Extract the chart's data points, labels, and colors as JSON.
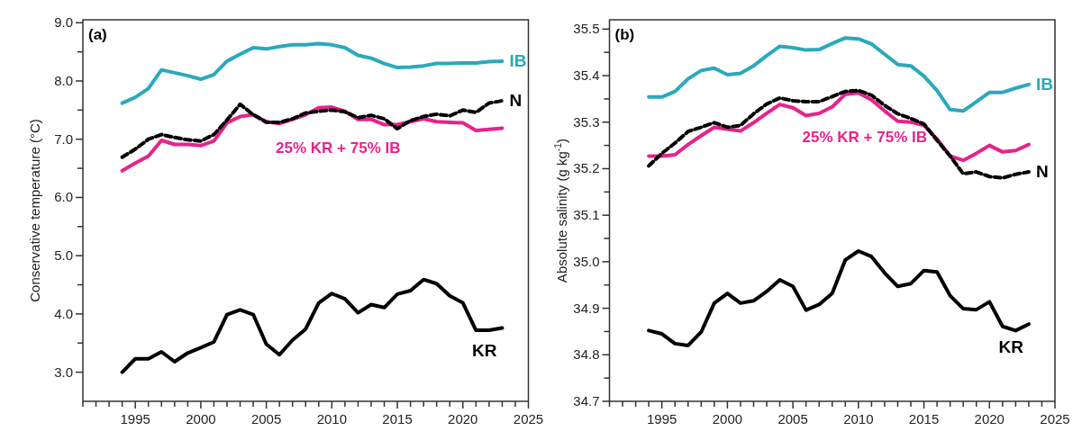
{
  "chart_data": [
    {
      "type": "line",
      "title": "(a)",
      "ylabel": "Conservative temperature (°C)",
      "x": [
        1994,
        1995,
        1996,
        1997,
        1998,
        1999,
        2000,
        2001,
        2002,
        2003,
        2004,
        2005,
        2006,
        2007,
        2008,
        2009,
        2010,
        2011,
        2012,
        2013,
        2014,
        2015,
        2016,
        2017,
        2018,
        2019,
        2020,
        2021,
        2022,
        2023
      ],
      "xlim": [
        1991,
        2025
      ],
      "ylim": [
        2.5,
        9.05
      ],
      "xticks": [
        {
          "value": 1991,
          "label": null
        },
        {
          "value": 1992,
          "label": null
        },
        {
          "value": 1993,
          "label": null
        },
        {
          "value": 1994,
          "label": null
        },
        1995,
        {
          "value": 1996,
          "label": null
        },
        {
          "value": 1997,
          "label": null
        },
        {
          "value": 1998,
          "label": null
        },
        {
          "value": 1999,
          "label": null
        },
        2000,
        {
          "value": 2001,
          "label": null
        },
        {
          "value": 2002,
          "label": null
        },
        {
          "value": 2003,
          "label": null
        },
        {
          "value": 2004,
          "label": null
        },
        2005,
        {
          "value": 2006,
          "label": null
        },
        {
          "value": 2007,
          "label": null
        },
        {
          "value": 2008,
          "label": null
        },
        {
          "value": 2009,
          "label": null
        },
        2010,
        {
          "value": 2011,
          "label": null
        },
        {
          "value": 2012,
          "label": null
        },
        {
          "value": 2013,
          "label": null
        },
        {
          "value": 2014,
          "label": null
        },
        2015,
        {
          "value": 2016,
          "label": null
        },
        {
          "value": 2017,
          "label": null
        },
        {
          "value": 2018,
          "label": null
        },
        {
          "value": 2019,
          "label": null
        },
        2020,
        {
          "value": 2021,
          "label": null
        },
        {
          "value": 2022,
          "label": null
        },
        {
          "value": 2023,
          "label": null
        },
        {
          "value": 2024,
          "label": null
        },
        2025
      ],
      "yticks": [
        {
          "value": 3,
          "label": "3.0"
        },
        {
          "value": 3.5,
          "label": null
        },
        {
          "value": 4,
          "label": "4.0"
        },
        {
          "value": 4.5,
          "label": null
        },
        {
          "value": 5,
          "label": "5.0"
        },
        {
          "value": 5.5,
          "label": null
        },
        {
          "value": 6,
          "label": "6.0"
        },
        {
          "value": 6.5,
          "label": null
        },
        {
          "value": 7,
          "label": "7.0"
        },
        {
          "value": 7.5,
          "label": null
        },
        {
          "value": 8,
          "label": "8.0"
        },
        {
          "value": 8.5,
          "label": null
        },
        {
          "value": 9,
          "label": "9.0"
        }
      ],
      "grid": false,
      "marker": "none",
      "series": [
        {
          "name": "IB",
          "color": "#2aa9bd",
          "line_style": "solid",
          "values": [
            7.62,
            7.72,
            7.87,
            8.19,
            8.14,
            8.09,
            8.03,
            8.11,
            8.34,
            8.46,
            8.57,
            8.55,
            8.59,
            8.62,
            8.62,
            8.64,
            8.62,
            8.57,
            8.44,
            8.39,
            8.3,
            8.23,
            8.24,
            8.26,
            8.3,
            8.3,
            8.31,
            8.31,
            8.33,
            8.34
          ]
        },
        {
          "name": "25% KR + 75% IB",
          "color": "#e6238c",
          "line_style": "solid",
          "values": [
            6.46,
            6.59,
            6.71,
            6.98,
            6.91,
            6.91,
            6.89,
            6.97,
            7.28,
            7.39,
            7.42,
            7.3,
            7.27,
            7.34,
            7.42,
            7.54,
            7.55,
            7.48,
            7.34,
            7.34,
            7.25,
            7.25,
            7.3,
            7.35,
            7.3,
            7.29,
            7.28,
            7.15,
            7.17,
            7.19
          ]
        },
        {
          "name": "N",
          "color": "#000000",
          "line_style": "dashed",
          "values": [
            6.69,
            6.83,
            7.0,
            7.08,
            7.03,
            6.99,
            6.97,
            7.08,
            7.33,
            7.6,
            7.42,
            7.29,
            7.29,
            7.35,
            7.45,
            7.48,
            7.5,
            7.47,
            7.37,
            7.41,
            7.35,
            7.18,
            7.32,
            7.39,
            7.43,
            7.4,
            7.5,
            7.46,
            7.62,
            7.66
          ]
        },
        {
          "name": "KR",
          "color": "#000000",
          "line_style": "solid",
          "values": [
            3.0,
            3.23,
            3.23,
            3.35,
            3.18,
            3.33,
            3.42,
            3.52,
            3.99,
            4.07,
            3.99,
            3.48,
            3.3,
            3.55,
            3.74,
            4.19,
            4.35,
            4.26,
            4.02,
            4.16,
            4.11,
            4.34,
            4.4,
            4.59,
            4.52,
            4.31,
            4.19,
            3.72,
            3.72,
            3.76
          ]
        }
      ]
    },
    {
      "type": "line",
      "title": "(b)",
      "ylabel": "Absolute salinity (g kg$^{-1}$)",
      "x": [
        1994,
        1995,
        1996,
        1997,
        1998,
        1999,
        2000,
        2001,
        2002,
        2003,
        2004,
        2005,
        2006,
        2007,
        2008,
        2009,
        2010,
        2011,
        2012,
        2013,
        2014,
        2015,
        2016,
        2017,
        2018,
        2019,
        2020,
        2021,
        2022,
        2023
      ],
      "xlim": [
        1991,
        2025
      ],
      "ylim": [
        34.7,
        35.52
      ],
      "xticks": [
        {
          "value": 1991,
          "label": null
        },
        {
          "value": 1992,
          "label": null
        },
        {
          "value": 1993,
          "label": null
        },
        {
          "value": 1994,
          "label": null
        },
        1995,
        {
          "value": 1996,
          "label": null
        },
        {
          "value": 1997,
          "label": null
        },
        {
          "value": 1998,
          "label": null
        },
        {
          "value": 1999,
          "label": null
        },
        2000,
        {
          "value": 2001,
          "label": null
        },
        {
          "value": 2002,
          "label": null
        },
        {
          "value": 2003,
          "label": null
        },
        {
          "value": 2004,
          "label": null
        },
        2005,
        {
          "value": 2006,
          "label": null
        },
        {
          "value": 2007,
          "label": null
        },
        {
          "value": 2008,
          "label": null
        },
        {
          "value": 2009,
          "label": null
        },
        2010,
        {
          "value": 2011,
          "label": null
        },
        {
          "value": 2012,
          "label": null
        },
        {
          "value": 2013,
          "label": null
        },
        {
          "value": 2014,
          "label": null
        },
        2015,
        {
          "value": 2016,
          "label": null
        },
        {
          "value": 2017,
          "label": null
        },
        {
          "value": 2018,
          "label": null
        },
        {
          "value": 2019,
          "label": null
        },
        2020,
        {
          "value": 2021,
          "label": null
        },
        {
          "value": 2022,
          "label": null
        },
        {
          "value": 2023,
          "label": null
        },
        {
          "value": 2024,
          "label": null
        },
        2025
      ],
      "yticks": [
        34.7,
        {
          "value": 34.75,
          "label": null
        },
        34.8,
        {
          "value": 34.85,
          "label": null
        },
        34.9,
        {
          "value": 34.95,
          "label": null
        },
        {
          "value": 35,
          "label": "35.0"
        },
        {
          "value": 35.05,
          "label": null
        },
        35.1,
        {
          "value": 35.15,
          "label": null
        },
        35.2,
        {
          "value": 35.25,
          "label": null
        },
        35.3,
        {
          "value": 35.35,
          "label": null
        },
        35.4,
        {
          "value": 35.45,
          "label": null
        },
        35.5
      ],
      "grid": false,
      "marker": "none",
      "series": [
        {
          "name": "IB",
          "color": "#2aa9bd",
          "line_style": "solid",
          "values": [
            35.354,
            35.354,
            35.366,
            35.393,
            35.411,
            35.416,
            35.402,
            35.405,
            35.421,
            35.443,
            35.463,
            35.46,
            35.455,
            35.456,
            35.469,
            35.481,
            35.479,
            35.468,
            35.446,
            35.424,
            35.421,
            35.399,
            35.368,
            35.327,
            35.324,
            35.344,
            35.364,
            35.364,
            35.373,
            35.381
          ]
        },
        {
          "name": "25% KR + 75% IB",
          "color": "#e6238c",
          "line_style": "solid",
          "values": [
            35.227,
            35.227,
            35.23,
            35.252,
            35.271,
            35.289,
            35.285,
            35.281,
            35.299,
            35.319,
            35.338,
            35.331,
            35.314,
            35.319,
            35.333,
            35.36,
            35.363,
            35.348,
            35.324,
            35.302,
            35.3,
            35.293,
            35.264,
            35.227,
            35.218,
            35.233,
            35.25,
            35.236,
            35.239,
            35.252
          ]
        },
        {
          "name": "N",
          "color": "#000000",
          "line_style": "dashed",
          "values": [
            35.206,
            35.233,
            35.255,
            35.28,
            35.289,
            35.299,
            35.289,
            35.293,
            35.318,
            35.339,
            35.352,
            35.346,
            35.344,
            35.344,
            35.355,
            35.366,
            35.368,
            35.358,
            35.336,
            35.318,
            35.308,
            35.296,
            35.261,
            35.227,
            35.189,
            35.193,
            35.183,
            35.18,
            35.188,
            35.193
          ]
        },
        {
          "name": "KR",
          "color": "#000000",
          "line_style": "solid",
          "values": [
            34.852,
            34.845,
            34.824,
            34.82,
            34.849,
            34.911,
            34.932,
            34.911,
            34.916,
            34.936,
            34.961,
            34.947,
            34.896,
            34.908,
            34.932,
            35.004,
            35.023,
            35.011,
            34.976,
            34.947,
            34.953,
            34.981,
            34.978,
            34.927,
            34.899,
            34.897,
            34.914,
            34.861,
            34.852,
            34.866
          ]
        }
      ]
    }
  ]
}
